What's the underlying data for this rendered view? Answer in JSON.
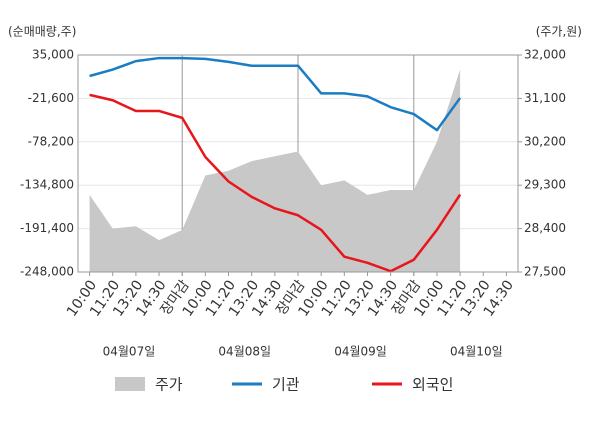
{
  "chart_data": {
    "type": "line",
    "y_axis_label": "(순매매량,주)",
    "y2_axis_label": "(주가,원)",
    "categories": [
      "10:00",
      "11:20",
      "13:20",
      "14:30",
      "장마감",
      "10:00",
      "11:20",
      "13:20",
      "14:30",
      "장마감",
      "10:00",
      "11:20",
      "13:20",
      "14:30",
      "장마감",
      "10:00",
      "11:20",
      "13:20",
      "14:30"
    ],
    "category_colors": [
      "#333",
      "#333",
      "#333",
      "#333",
      "#e8151b",
      "#333",
      "#333",
      "#333",
      "#333",
      "#e8151b",
      "#333",
      "#333",
      "#333",
      "#333",
      "#e8151b",
      "#333",
      "#333",
      "#333",
      "#333"
    ],
    "x_groups": [
      "04월07일",
      "04월08일",
      "04월09일",
      "04월10일"
    ],
    "series": [
      {
        "name": "주가",
        "type": "area",
        "axis": "y2",
        "color": "#c8c8c8",
        "values": [
          29100,
          28400,
          28450,
          28160,
          28370,
          29500,
          29600,
          29800,
          29900,
          30000,
          29300,
          29400,
          29100,
          29200,
          29200,
          30200,
          31700,
          null,
          null
        ]
      },
      {
        "name": "기관",
        "color": "#1a7dc4",
        "values": [
          7600,
          16000,
          27000,
          31000,
          31000,
          30000,
          26000,
          21000,
          21000,
          21000,
          -15000,
          -15000,
          -19000,
          -33000,
          -42000,
          -63000,
          -21000,
          null,
          null
        ]
      },
      {
        "name": "외국인",
        "color": "#e8151b",
        "values": [
          -17000,
          -24000,
          -38000,
          -38000,
          -47000,
          -98000,
          -130000,
          -150000,
          -165000,
          -174000,
          -193000,
          -228000,
          -236000,
          -247000,
          -232000,
          -193000,
          -147000,
          null,
          null
        ]
      }
    ],
    "ylim": [
      -248000,
      35000
    ],
    "yticks": [
      {
        "value": 35000,
        "label": "35,000"
      },
      {
        "value": -21600,
        "label": "-21,600"
      },
      {
        "value": -78200,
        "label": "-78,200"
      },
      {
        "value": -134800,
        "label": "-134,800"
      },
      {
        "value": -191400,
        "label": "-191,400"
      },
      {
        "value": -248000,
        "label": "-248,000"
      }
    ],
    "y2lim": [
      27500,
      32000
    ],
    "y2ticks": [
      {
        "value": 32000,
        "label": "32,000"
      },
      {
        "value": 31100,
        "label": "31,100"
      },
      {
        "value": 30200,
        "label": "30,200"
      },
      {
        "value": 29300,
        "label": "29,300"
      },
      {
        "value": 28400,
        "label": "28,400"
      },
      {
        "value": 27500,
        "label": "27,500"
      }
    ],
    "grid": true
  }
}
